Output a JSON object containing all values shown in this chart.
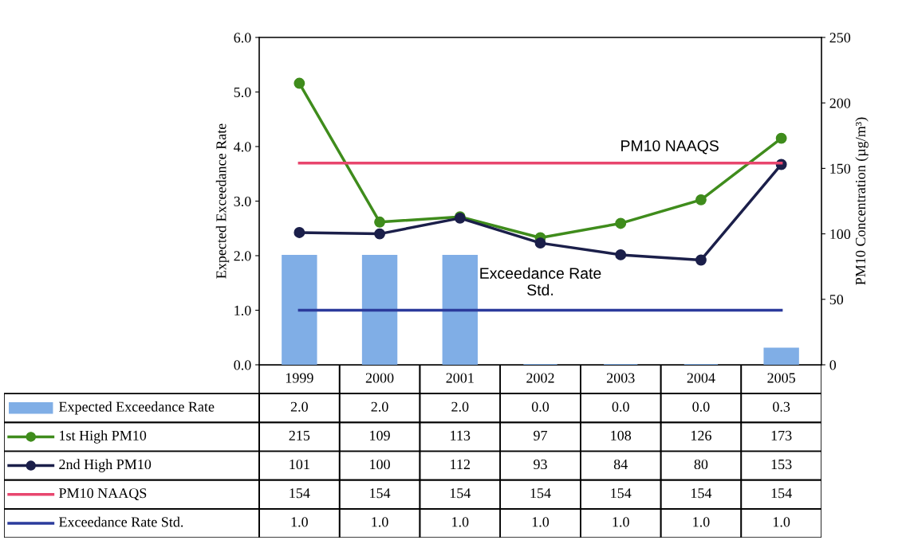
{
  "chart_data": {
    "type": "bar",
    "ylabel": "Expected Exceedance Rate",
    "y2label": "PM10 Concentration (µg/m³)",
    "categories": [
      "1999",
      "2000",
      "2001",
      "2002",
      "2003",
      "2004",
      "2005"
    ],
    "series": [
      {
        "name": "Expected Exceedance Rate",
        "axis": "y",
        "color": "#80aee6",
        "values": [
          2.0,
          2.0,
          2.0,
          0.0,
          0.0,
          0.0,
          0.3
        ],
        "value_labels": [
          "2.0",
          "2.0",
          "2.0",
          "0.0",
          "0.0",
          "0.0",
          "0.3"
        ]
      },
      {
        "name": "1st High PM10",
        "type": "line",
        "axis": "y2",
        "marker": "circle",
        "color": "#3f8c1c",
        "values": [
          215,
          109,
          113,
          97,
          108,
          126,
          173
        ],
        "value_labels": [
          "215",
          "109",
          "113",
          "97",
          "108",
          "126",
          "173"
        ]
      },
      {
        "name": "2nd High PM10",
        "type": "line",
        "axis": "y2",
        "marker": "circle",
        "color": "#1b1f4a",
        "values": [
          101,
          100,
          112,
          93,
          84,
          80,
          153
        ],
        "value_labels": [
          "101",
          "100",
          "112",
          "93",
          "84",
          "80",
          "153"
        ]
      },
      {
        "name": "PM10 NAAQS",
        "type": "line",
        "axis": "y2",
        "marker": "none",
        "color": "#e8466e",
        "values": [
          154,
          154,
          154,
          154,
          154,
          154,
          154
        ],
        "value_labels": [
          "154",
          "154",
          "154",
          "154",
          "154",
          "154",
          "154"
        ]
      },
      {
        "name": "Exceedance Rate Std.",
        "type": "line",
        "axis": "y",
        "marker": "none",
        "color": "#2b3b9c",
        "values": [
          1.0,
          1.0,
          1.0,
          1.0,
          1.0,
          1.0,
          1.0
        ],
        "value_labels": [
          "1.0",
          "1.0",
          "1.0",
          "1.0",
          "1.0",
          "1.0",
          "1.0"
        ]
      }
    ],
    "ylim": [
      0,
      6
    ],
    "yticks": [
      {
        "value": 0,
        "label": "0.0"
      },
      {
        "value": 1,
        "label": "1.0"
      },
      {
        "value": 2,
        "label": "2.0"
      },
      {
        "value": 3,
        "label": "3.0"
      },
      {
        "value": 4,
        "label": "4.0"
      },
      {
        "value": 5,
        "label": "5.0"
      },
      {
        "value": 6,
        "label": "6.0"
      }
    ],
    "y2lim": [
      0,
      250
    ],
    "y2ticks": [
      0,
      50,
      100,
      150,
      200,
      250
    ],
    "annotations": [
      "PM10 NAAQS",
      "Exceedance Rate\nStd."
    ],
    "legend": "bottom left",
    "grid": false,
    "line_style": "solid"
  }
}
